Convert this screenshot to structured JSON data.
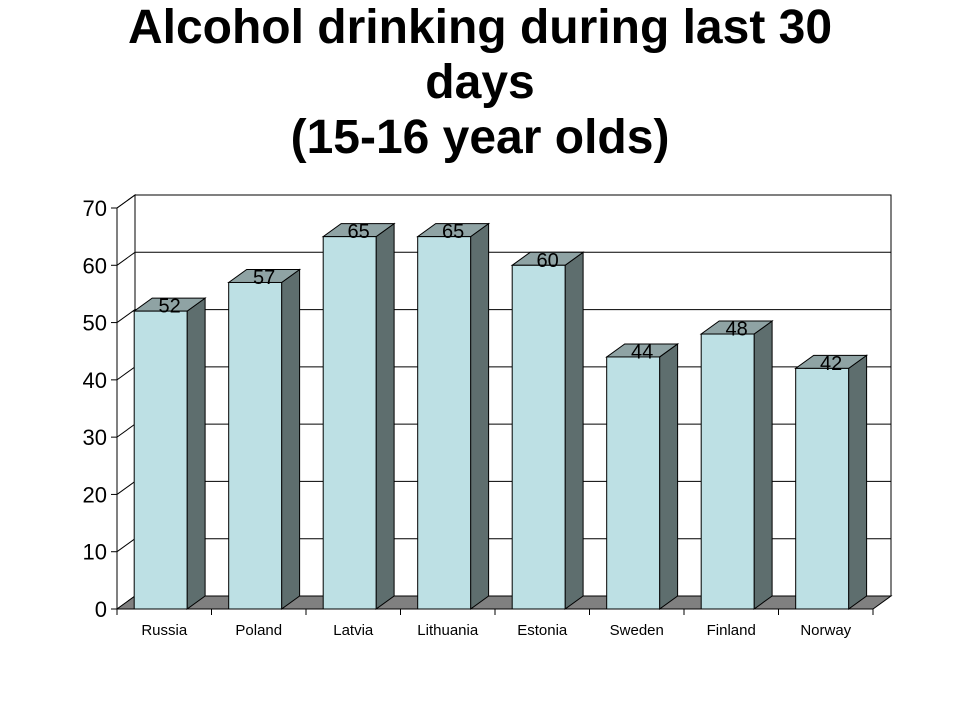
{
  "colors": {
    "bar_front": "#bde0e4",
    "bar_side": "#5e6e6e",
    "bar_top": "#8fa3a4",
    "floor": "#808080",
    "wall": "#ffffff",
    "grid": "#000000"
  },
  "chart_data": {
    "type": "bar",
    "title_lines": [
      "Alcohol drinking during last 30",
      "days",
      "(15-16 year olds)"
    ],
    "categories": [
      "Russia",
      "Poland",
      "Latvia",
      "Lithuania",
      "Estonia",
      "Sweden",
      "Finland",
      "Norway"
    ],
    "values": [
      52,
      57,
      65,
      65,
      60,
      44,
      48,
      42
    ],
    "data_labels": [
      "52",
      "57",
      "65",
      "65",
      "60",
      "44",
      "48",
      "42"
    ],
    "ylim": [
      0,
      70
    ],
    "yticks": [
      "0",
      "10",
      "20",
      "30",
      "40",
      "50",
      "60",
      "70"
    ],
    "xlabel": "",
    "ylabel": "",
    "grid": true,
    "legend": "none",
    "three_d": true
  }
}
